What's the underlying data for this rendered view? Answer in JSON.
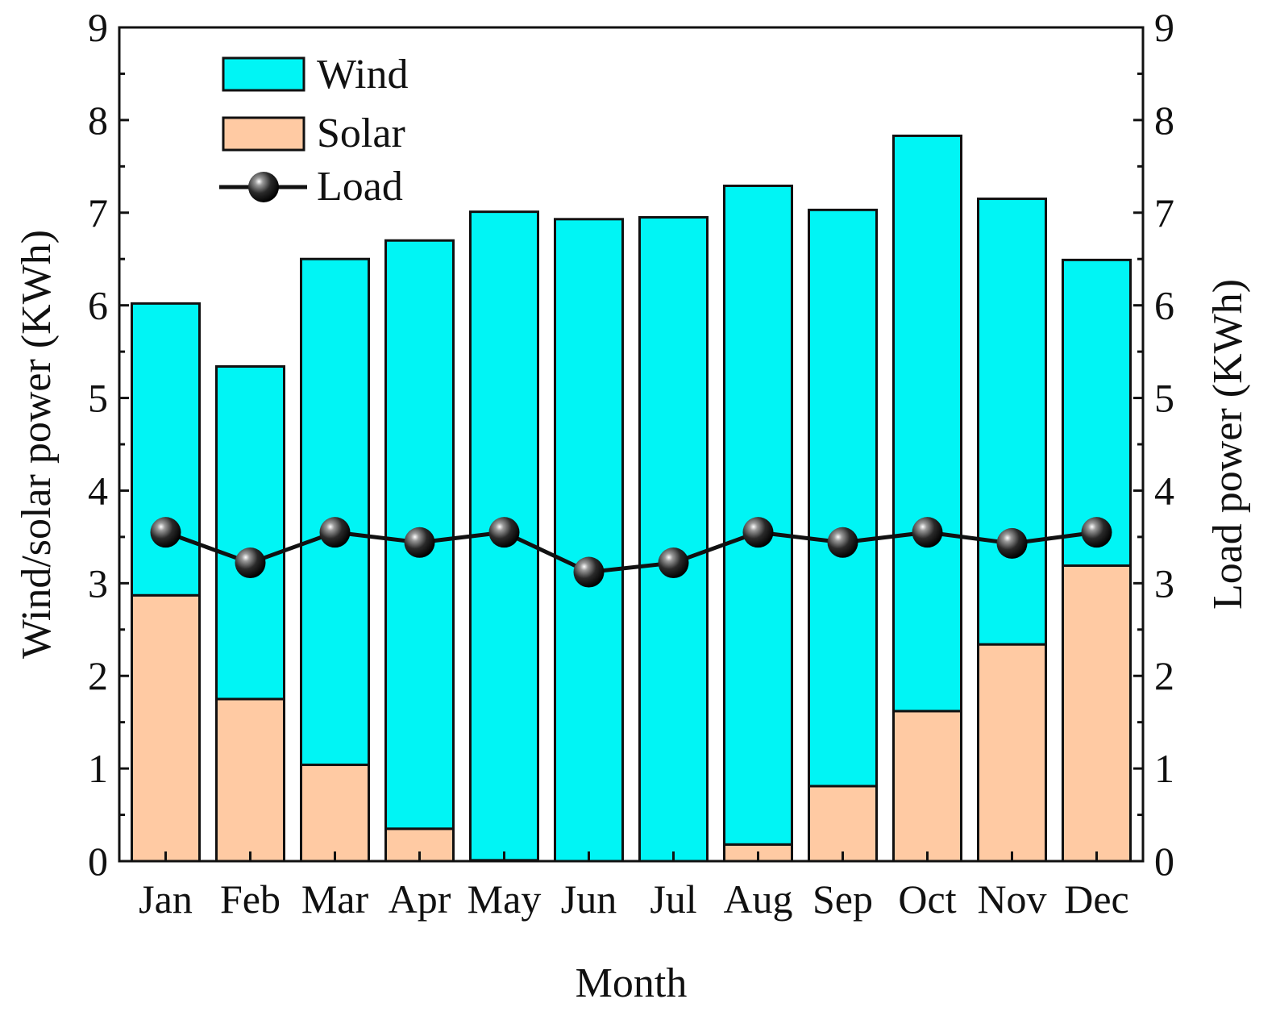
{
  "chart_data": {
    "type": "bar",
    "stacked": true,
    "categories": [
      "Jan",
      "Feb",
      "Mar",
      "Apr",
      "May",
      "Jun",
      "Jul",
      "Aug",
      "Sep",
      "Oct",
      "Nov",
      "Dec"
    ],
    "series": [
      {
        "name": "Solar",
        "type": "bar",
        "color": "#ffcaa3",
        "values": [
          2.87,
          1.75,
          1.04,
          0.35,
          0.01,
          0.0,
          0.0,
          0.18,
          0.81,
          1.62,
          2.34,
          3.19
        ]
      },
      {
        "name": "Wind",
        "type": "bar",
        "color": "#00f5f5",
        "values": [
          3.15,
          3.59,
          5.46,
          6.35,
          7.0,
          6.93,
          6.95,
          7.11,
          6.22,
          6.21,
          4.81,
          3.3
        ]
      },
      {
        "name": "Load",
        "type": "line",
        "axis": "right",
        "color": "#111111",
        "values": [
          3.55,
          3.22,
          3.55,
          3.44,
          3.55,
          3.12,
          3.22,
          3.55,
          3.44,
          3.55,
          3.43,
          3.55
        ]
      }
    ],
    "legend": [
      "Wind",
      "Solar",
      "Load"
    ],
    "legend_position": "top-left",
    "xlabel": "Month",
    "ylabel": "Wind/solar power (KWh)",
    "ylabel_right": "Load power (KWh)",
    "ylim": [
      0,
      9
    ],
    "ylim_right": [
      0,
      9
    ],
    "yticks": [
      "0",
      "1",
      "2",
      "3",
      "4",
      "5",
      "6",
      "7",
      "8",
      "9"
    ],
    "grid": false
  }
}
